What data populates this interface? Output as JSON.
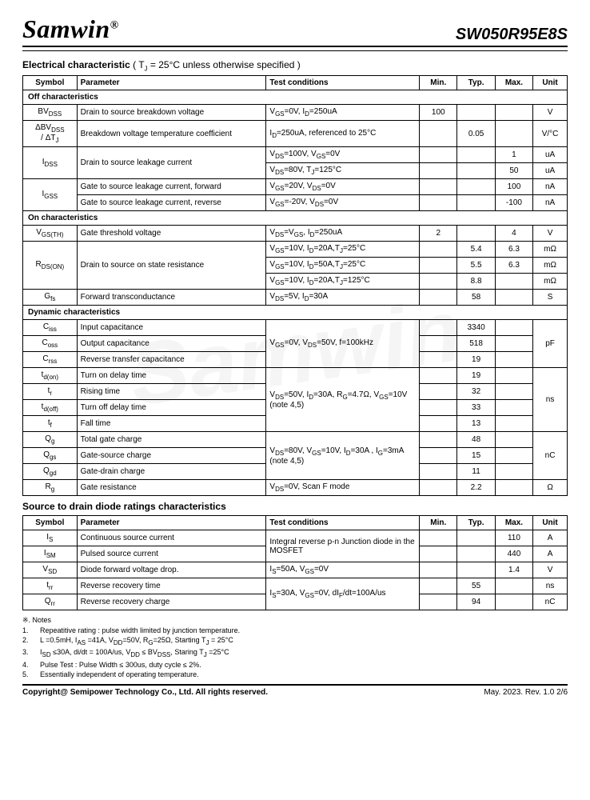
{
  "header": {
    "logo": "Samwin",
    "reg": "®",
    "part": "SW050R95E8S"
  },
  "titles": {
    "elec_html": "Electrical characteristic <span class='norm'>( T<sub>J</sub> = 25°C unless otherwise specified )</span>",
    "diode": "Source to drain diode ratings characteristics"
  },
  "cols": [
    "Symbol",
    "Parameter",
    "Test conditions",
    "Min.",
    "Typ.",
    "Max.",
    "Unit"
  ],
  "sections": {
    "off": "Off characteristics",
    "on": "On characteristics",
    "dyn": "Dynamic characteristics"
  },
  "t1_off": [
    {
      "sym": "BV<sub>DSS</sub>",
      "param": "Drain to source breakdown voltage",
      "cond": "V<sub>GS</sub>=0V, I<sub>D</sub>=250uA",
      "min": "100",
      "typ": "",
      "max": "",
      "unit": "V"
    },
    {
      "sym": "ΔBV<sub>DSS</sub><br>/ ΔT<sub>J</sub>",
      "param": "Breakdown voltage temperature coefficient",
      "cond": "I<sub>D</sub>=250uA, referenced to 25°C",
      "min": "",
      "typ": "0.05",
      "max": "",
      "unit": "V/°C"
    },
    {
      "sym": "I<sub>DSS</sub>",
      "rowspan": 2,
      "param": "Drain to source leakage current",
      "prowspan": 2,
      "cond": "V<sub>DS</sub>=100V, V<sub>GS</sub>=0V",
      "min": "",
      "typ": "",
      "max": "1",
      "unit": "uA"
    },
    {
      "cond": "V<sub>DS</sub>=80V, T<sub>J</sub>=125°C",
      "min": "",
      "typ": "",
      "max": "50",
      "unit": "uA"
    },
    {
      "sym": "I<sub>GSS</sub>",
      "rowspan": 2,
      "param": "Gate to source leakage current, forward",
      "cond": "V<sub>GS</sub>=20V, V<sub>DS</sub>=0V",
      "min": "",
      "typ": "",
      "max": "100",
      "unit": "nA"
    },
    {
      "param": "Gate to source leakage current, reverse",
      "cond": "V<sub>GS</sub>=-20V, V<sub>DS</sub>=0V",
      "min": "",
      "typ": "",
      "max": "-100",
      "unit": "nA"
    }
  ],
  "t1_on": [
    {
      "sym": "V<sub>GS(TH)</sub>",
      "param": "Gate threshold voltage",
      "cond": "V<sub>DS</sub>=V<sub>GS</sub>, I<sub>D</sub>=250uA",
      "min": "2",
      "typ": "",
      "max": "4",
      "unit": "V"
    },
    {
      "sym": "R<sub>DS(ON)</sub>",
      "rowspan": 3,
      "param": "Drain to source on state resistance",
      "prowspan": 3,
      "cond": "V<sub>GS</sub>=10V, I<sub>D</sub>=20A,T<sub>J</sub>=25°C",
      "min": "",
      "typ": "5.4",
      "max": "6.3",
      "unit": "mΩ"
    },
    {
      "cond": "V<sub>GS</sub>=10V, I<sub>D</sub>=50A,T<sub>J</sub>=25°C",
      "min": "",
      "typ": "5.5",
      "max": "6.3",
      "unit": "mΩ"
    },
    {
      "cond": "V<sub>GS</sub>=10V, I<sub>D</sub>=20A,T<sub>J</sub>=125°C",
      "min": "",
      "typ": "8.8",
      "max": "",
      "unit": "mΩ"
    },
    {
      "sym": "G<sub>fs</sub>",
      "param": "Forward transconductance",
      "cond": "V<sub>DS</sub>=5V, I<sub>D</sub>=30A",
      "min": "",
      "typ": "58",
      "max": "",
      "unit": "S"
    }
  ],
  "t1_dyn": [
    {
      "sym": "C<sub>iss</sub>",
      "param": "Input capacitance",
      "cond": "V<sub>GS</sub>=0V, V<sub>DS</sub>=50V, f=100kHz",
      "crowspan": 3,
      "min": "",
      "typ": "3340",
      "max": "",
      "unit": "pF",
      "urowspan": 3
    },
    {
      "sym": "C<sub>oss</sub>",
      "param": "Output capacitance",
      "min": "",
      "typ": "518",
      "max": ""
    },
    {
      "sym": "C<sub>rss</sub>",
      "param": "Reverse transfer capacitance",
      "min": "",
      "typ": "19",
      "max": ""
    },
    {
      "sym": "t<sub>d(on)</sub>",
      "param": "Turn on delay time",
      "cond": "V<sub>DS</sub>=50V, I<sub>D</sub>=30A, R<sub>G</sub>=4.7Ω, V<sub>GS</sub>=10V<br>(note 4,5)",
      "crowspan": 4,
      "min": "",
      "typ": "19",
      "max": "",
      "unit": "ns",
      "urowspan": 4
    },
    {
      "sym": "t<sub>r</sub>",
      "param": "Rising time",
      "min": "",
      "typ": "32",
      "max": ""
    },
    {
      "sym": "t<sub>d(off)</sub>",
      "param": "Turn off delay time",
      "min": "",
      "typ": "33",
      "max": ""
    },
    {
      "sym": "t<sub>f</sub>",
      "param": "Fall time",
      "min": "",
      "typ": "13",
      "max": ""
    },
    {
      "sym": "Q<sub>g</sub>",
      "param": "Total gate charge",
      "cond": "V<sub>DS</sub>=80V, V<sub>GS</sub>=10V, I<sub>D</sub>=30A ,  I<sub>G</sub>=3mA<br>(note 4,5)",
      "crowspan": 3,
      "min": "",
      "typ": "48",
      "max": "",
      "unit": "nC",
      "urowspan": 3
    },
    {
      "sym": "Q<sub>gs</sub>",
      "param": "Gate-source charge",
      "min": "",
      "typ": "15",
      "max": ""
    },
    {
      "sym": "Q<sub>gd</sub>",
      "param": "Gate-drain charge",
      "min": "",
      "typ": "11",
      "max": ""
    },
    {
      "sym": "R<sub>g</sub>",
      "param": "Gate resistance",
      "cond": "V<sub>DS</sub>=0V, Scan F mode",
      "min": "",
      "typ": "2.2",
      "max": "",
      "unit": "Ω"
    }
  ],
  "t2": [
    {
      "sym": "I<sub>S</sub>",
      "param": "Continuous source current",
      "cond": "Integral reverse p-n Junction diode in the MOSFET",
      "crowspan": 2,
      "min": "",
      "typ": "",
      "max": "110",
      "unit": "A"
    },
    {
      "sym": "I<sub>SM</sub>",
      "param": "Pulsed source current",
      "min": "",
      "typ": "",
      "max": "440",
      "unit": "A"
    },
    {
      "sym": "V<sub>SD</sub>",
      "param": "Diode forward voltage drop.",
      "cond": "I<sub>S</sub>=50A, V<sub>GS</sub>=0V",
      "min": "",
      "typ": "",
      "max": "1.4",
      "unit": "V"
    },
    {
      "sym": "t<sub>rr</sub>",
      "param": "Reverse recovery time",
      "cond": "I<sub>S</sub>=30A, V<sub>GS</sub>=0V, dI<sub>F</sub>/dt=100A/us",
      "crowspan": 2,
      "min": "",
      "typ": "55",
      "max": "",
      "unit": "ns"
    },
    {
      "sym": "Q<sub>rr</sub>",
      "param": "Reverse recovery charge",
      "min": "",
      "typ": "94",
      "max": "",
      "unit": "nC"
    }
  ],
  "notes": {
    "lead": "※. Notes",
    "items": [
      "Repeatitive rating : pulse width limited by junction temperature.",
      "L =0.5mH, I<sub>AS</sub> =41A, V<sub>DD</sub>=50V, R<sub>G</sub>=25Ω, Starting T<sub>J</sub> = 25°C",
      "I<sub>SD</sub> ≤30A, di/dt = 100A/us, V<sub>DD</sub> ≤ BV<sub>DSS</sub>, Staring T<sub>J</sub> =25°C",
      "Pulse Test : Pulse Width ≤ 300us, duty cycle ≤ 2%.",
      "Essentially independent of operating temperature."
    ]
  },
  "footer": {
    "left": "Copyright@ Semipower Technology Co., Ltd. All rights reserved.",
    "right": "May. 2023. Rev. 1.0   2/6"
  }
}
